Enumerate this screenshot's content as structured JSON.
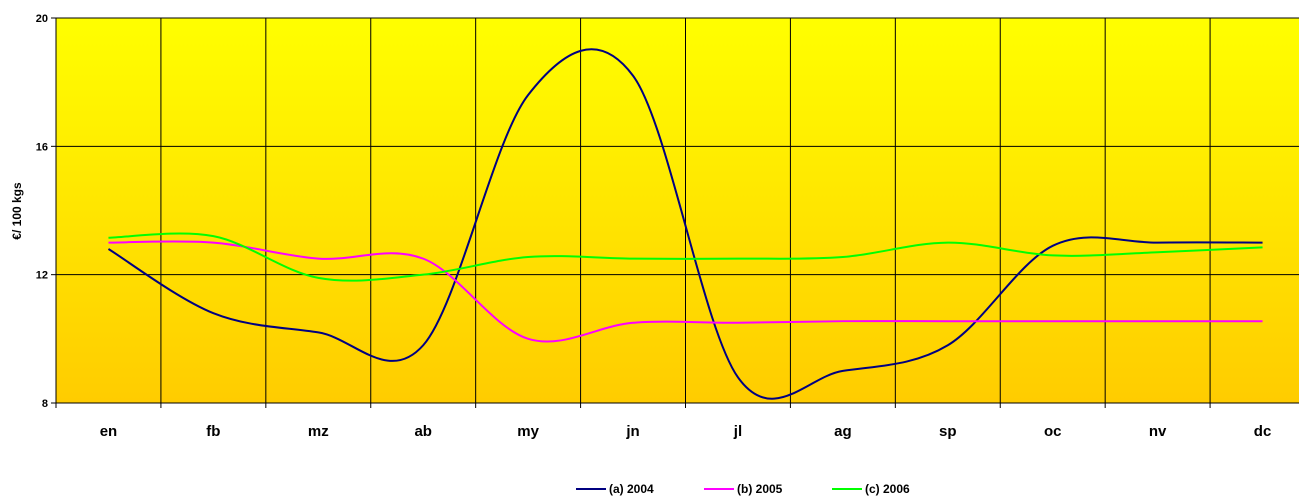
{
  "chart_data": {
    "type": "line",
    "title": "",
    "xlabel": "",
    "ylabel": "€/ 100 kgs",
    "ylim": [
      8,
      20
    ],
    "yticks": [
      8,
      12,
      16,
      20
    ],
    "grid": true,
    "legend_position": "bottom",
    "plot_background": [
      "#ffff00",
      "#ffcc00"
    ],
    "categories": [
      "en",
      "fb",
      "mz",
      "ab",
      "my",
      "jn",
      "jl",
      "ag",
      "sp",
      "oc",
      "nv",
      "dc"
    ],
    "series": [
      {
        "name": "(a) 2004",
        "color": "#000080",
        "values": [
          12.8,
          10.8,
          10.2,
          9.8,
          17.6,
          18.2,
          8.8,
          9.0,
          9.8,
          12.9,
          13.0,
          13.0
        ]
      },
      {
        "name": "(b) 2005",
        "color": "#ff00ff",
        "values": [
          13.0,
          13.0,
          12.5,
          12.5,
          10.0,
          10.5,
          10.5,
          10.55,
          10.55,
          10.55,
          10.55,
          10.55
        ]
      },
      {
        "name": "(c) 2006",
        "color": "#00ff00",
        "values": [
          13.15,
          13.2,
          11.9,
          12.0,
          12.55,
          12.5,
          12.5,
          12.55,
          13.0,
          12.6,
          12.7,
          12.85
        ]
      }
    ]
  }
}
